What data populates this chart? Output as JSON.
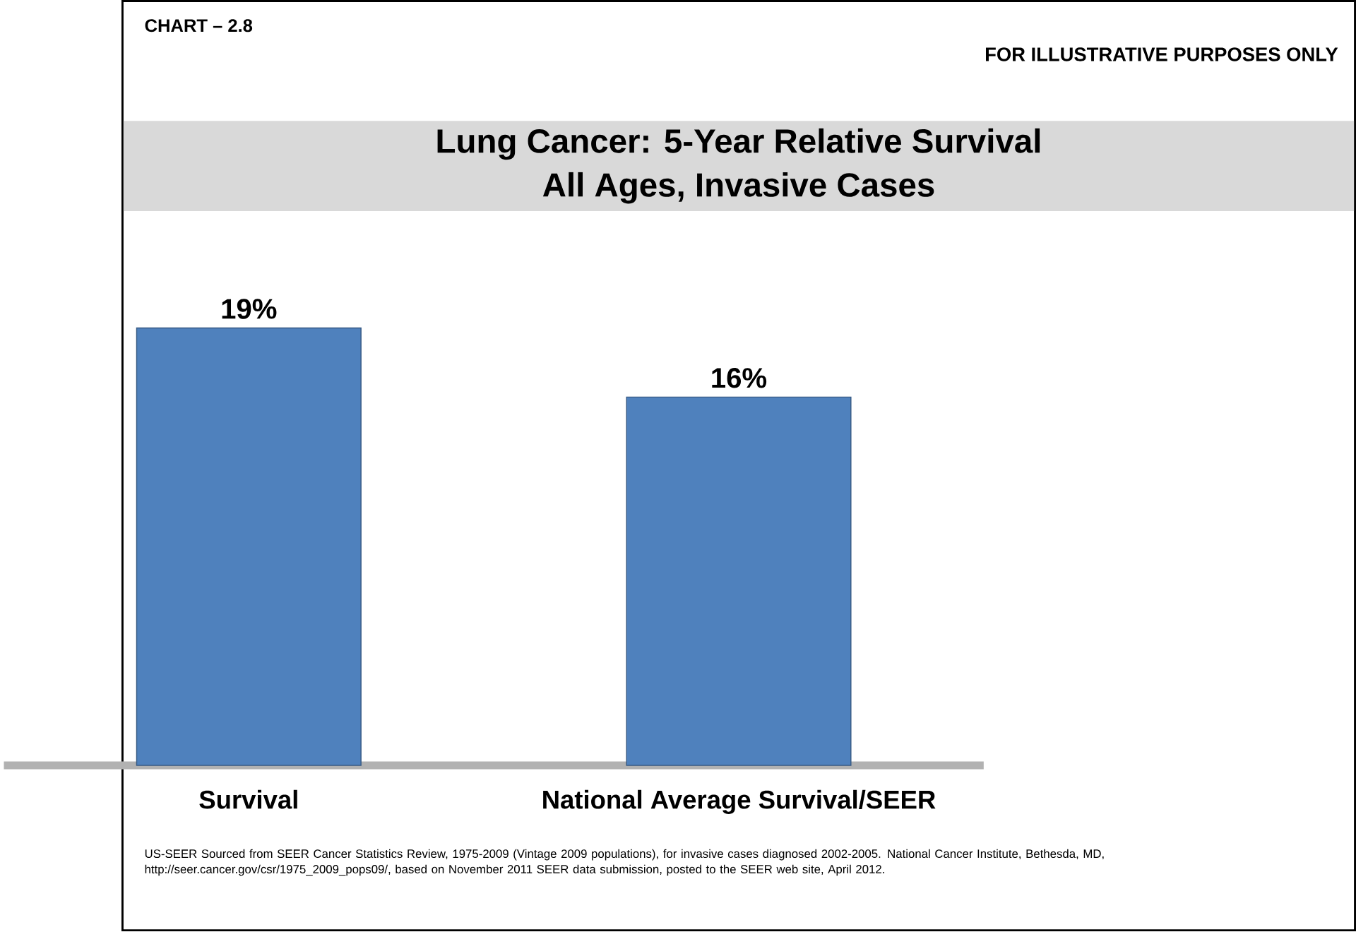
{
  "chart_data": {
    "type": "bar",
    "title": "Lung Cancer: 5-Year Relative Survival",
    "subtitle": "All Ages, Invasive Cases",
    "categories": [
      "Survival",
      "National Average Survival/SEER"
    ],
    "values": [
      19,
      16
    ],
    "value_labels": [
      "19%",
      "16%"
    ],
    "color": "#4f81bd",
    "annotations": [
      "CHART – 2.8",
      "FOR ILLUSTRATIVE PURPOSES ONLY",
      "US-SEER Sourced from SEER Cancer Statistics Review, 1975-2009 (Vintage 2009 populations), for invasive cases diagnosed 2002-2005. National Cancer Institute, Bethesda, MD, http://seer.cancer.gov/csr/1975_2009_pops09/, based on November 2011 SEER data submission, posted to the SEER web site, April 2012."
    ]
  }
}
